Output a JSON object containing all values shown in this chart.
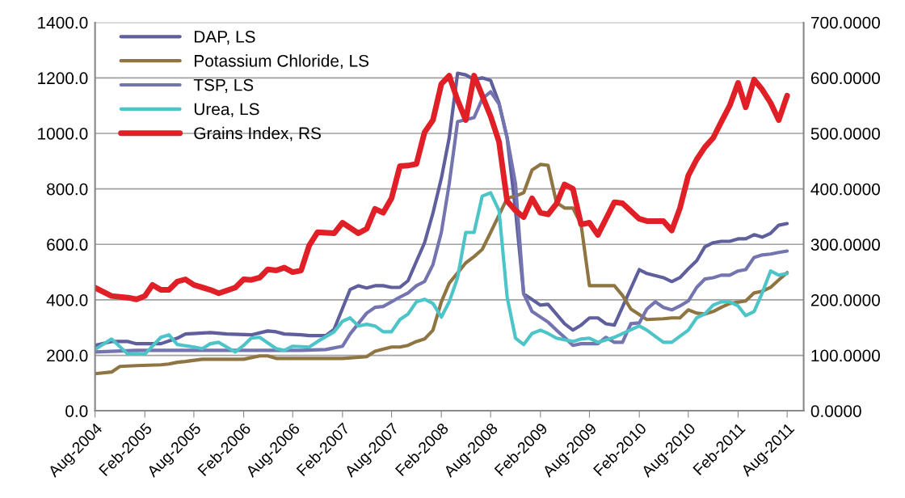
{
  "chart_data": {
    "type": "line",
    "ylim": [
      0,
      1400
    ],
    "yticks": [
      {
        "value": 0,
        "label": "0.0"
      },
      {
        "value": 200,
        "label": "200.0"
      },
      {
        "value": 400,
        "label": "400.0"
      },
      {
        "value": 600,
        "label": "600.0"
      },
      {
        "value": 800,
        "label": "800.0"
      },
      {
        "value": 1000,
        "label": "1000.0"
      },
      {
        "value": 1200,
        "label": "1200.0"
      },
      {
        "value": 1400,
        "label": "1400.0"
      }
    ],
    "y2lim": [
      0,
      700
    ],
    "y2ticks": [
      {
        "value": 0,
        "label": "0.0000"
      },
      {
        "value": 100,
        "label": "100.0000"
      },
      {
        "value": 200,
        "label": "200.0000"
      },
      {
        "value": 300,
        "label": "300.0000"
      },
      {
        "value": 400,
        "label": "400.0000"
      },
      {
        "value": 500,
        "label": "500.0000"
      },
      {
        "value": 600,
        "label": "600.0000"
      },
      {
        "value": 700,
        "label": "700.0000"
      }
    ],
    "xlim": [
      "2004-08",
      "2011-10"
    ],
    "xticks": [
      {
        "value": "2004-08",
        "label": "Aug-2004"
      },
      {
        "value": "2005-02",
        "label": "Feb-2005"
      },
      {
        "value": "2005-08",
        "label": "Aug-2005"
      },
      {
        "value": "2006-02",
        "label": "Feb-2006"
      },
      {
        "value": "2006-08",
        "label": "Aug-2006"
      },
      {
        "value": "2007-02",
        "label": "Feb-2007"
      },
      {
        "value": "2007-08",
        "label": "Aug-2007"
      },
      {
        "value": "2008-02",
        "label": "Feb-2008"
      },
      {
        "value": "2008-08",
        "label": "Aug-2008"
      },
      {
        "value": "2009-02",
        "label": "Feb-2009"
      },
      {
        "value": "2009-08",
        "label": "Aug-2009"
      },
      {
        "value": "2010-02",
        "label": "Feb-2010"
      },
      {
        "value": "2010-08",
        "label": "Aug-2010"
      },
      {
        "value": "2011-02",
        "label": "Feb-2011"
      },
      {
        "value": "2011-08",
        "label": "Aug-2011"
      }
    ],
    "grid": "y",
    "legend": "top left",
    "marker": "none",
    "line_style": "solid",
    "series": [
      {
        "name": "DAP, LS",
        "color": "#5f5f9e",
        "x": [
          "2004-08",
          "2004-10",
          "2004-12",
          "2005-01",
          "2005-03",
          "2005-04",
          "2005-06",
          "2005-07",
          "2005-10",
          "2005-12",
          "2006-03",
          "2006-05",
          "2006-06",
          "2006-07",
          "2006-09",
          "2006-10",
          "2006-12",
          "2007-01",
          "2007-03",
          "2007-04",
          "2007-05",
          "2007-06",
          "2007-07",
          "2007-08",
          "2007-09",
          "2007-10",
          "2007-11",
          "2007-12",
          "2008-01",
          "2008-02",
          "2008-03",
          "2008-04",
          "2008-05",
          "2008-06",
          "2008-07",
          "2008-08",
          "2008-09",
          "2008-10",
          "2008-11",
          "2008-12",
          "2009-02",
          "2009-03",
          "2009-05",
          "2009-06",
          "2009-07",
          "2009-08",
          "2009-09",
          "2009-10",
          "2009-11",
          "2010-02",
          "2010-03",
          "2010-05",
          "2010-06",
          "2010-07",
          "2010-08",
          "2010-09",
          "2010-10",
          "2010-11",
          "2010-12",
          "2011-01",
          "2011-02",
          "2011-03",
          "2011-04",
          "2011-05",
          "2011-06",
          "2011-07",
          "2011-08"
        ],
        "values": [
          236,
          250,
          250,
          242,
          242,
          242,
          262,
          277,
          282,
          277,
          274,
          288,
          285,
          277,
          274,
          271,
          271,
          294,
          437,
          451,
          443,
          451,
          451,
          445,
          445,
          469,
          539,
          606,
          713,
          838,
          984,
          1217,
          1211,
          1194,
          1200,
          1191,
          1109,
          984,
          722,
          422,
          381,
          384,
          314,
          291,
          309,
          335,
          335,
          314,
          309,
          509,
          495,
          480,
          466,
          480,
          512,
          541,
          591,
          606,
          611,
          611,
          620,
          620,
          635,
          626,
          640,
          669,
          675
        ]
      },
      {
        "name": "Potassium Chloride, LS",
        "color": "#8f7542",
        "x": [
          "2004-08",
          "2004-10",
          "2004-11",
          "2005-01",
          "2005-04",
          "2005-05",
          "2005-06",
          "2005-07",
          "2005-09",
          "2005-11",
          "2006-02",
          "2006-04",
          "2006-05",
          "2006-06",
          "2006-09",
          "2007-02",
          "2007-05",
          "2007-06",
          "2007-08",
          "2007-09",
          "2007-10",
          "2007-11",
          "2007-12",
          "2008-01",
          "2008-02",
          "2008-03",
          "2008-05",
          "2008-06",
          "2008-07",
          "2008-08",
          "2008-10",
          "2008-11",
          "2008-12",
          "2009-01",
          "2009-02",
          "2009-03",
          "2009-04",
          "2009-05",
          "2009-06",
          "2009-07",
          "2009-08",
          "2009-11",
          "2009-12",
          "2010-01",
          "2010-03",
          "2010-05",
          "2010-06",
          "2010-07",
          "2010-08",
          "2010-09",
          "2010-10",
          "2010-11",
          "2010-12",
          "2011-01",
          "2011-03",
          "2011-04",
          "2011-05",
          "2011-06",
          "2011-07",
          "2011-08"
        ],
        "values": [
          134,
          140,
          160,
          163,
          166,
          169,
          175,
          178,
          186,
          186,
          186,
          198,
          198,
          189,
          189,
          189,
          195,
          215,
          230,
          230,
          236,
          250,
          259,
          291,
          393,
          460,
          533,
          556,
          582,
          643,
          766,
          774,
          786,
          868,
          888,
          885,
          751,
          731,
          731,
          672,
          451,
          451,
          416,
          367,
          329,
          332,
          335,
          335,
          364,
          352,
          349,
          358,
          373,
          387,
          396,
          425,
          431,
          445,
          472,
          498
        ]
      },
      {
        "name": "TSP, LS",
        "color": "#7474b0",
        "x": [
          "2004-08",
          "2005-01",
          "2005-06",
          "2005-11",
          "2006-04",
          "2006-09",
          "2006-12",
          "2007-02",
          "2007-03",
          "2007-05",
          "2007-06",
          "2007-07",
          "2007-09",
          "2007-10",
          "2007-11",
          "2007-12",
          "2008-01",
          "2008-02",
          "2008-03",
          "2008-04",
          "2008-06",
          "2008-07",
          "2008-08",
          "2008-09",
          "2008-10",
          "2008-11",
          "2008-12",
          "2009-01",
          "2009-03",
          "2009-04",
          "2009-05",
          "2009-06",
          "2009-07",
          "2009-09",
          "2009-10",
          "2009-11",
          "2009-12",
          "2010-01",
          "2010-02",
          "2010-03",
          "2010-04",
          "2010-05",
          "2010-06",
          "2010-07",
          "2010-08",
          "2010-09",
          "2010-10",
          "2010-11",
          "2010-12",
          "2011-01",
          "2011-02",
          "2011-03",
          "2011-04",
          "2011-05",
          "2011-06",
          "2011-07",
          "2011-08"
        ],
        "values": [
          212,
          218,
          218,
          218,
          218,
          218,
          221,
          233,
          277,
          352,
          373,
          376,
          410,
          425,
          451,
          466,
          527,
          643,
          818,
          1042,
          1057,
          1124,
          1150,
          1106,
          984,
          818,
          422,
          358,
          320,
          291,
          265,
          236,
          242,
          242,
          265,
          247,
          247,
          314,
          317,
          367,
          393,
          373,
          364,
          378,
          396,
          445,
          475,
          480,
          489,
          489,
          504,
          509,
          553,
          562,
          565,
          571,
          576
        ]
      },
      {
        "name": "Urea, LS",
        "color": "#4dc4c8",
        "x": [
          "2004-08",
          "2004-10",
          "2004-12",
          "2005-01",
          "2005-02",
          "2005-04",
          "2005-05",
          "2005-06",
          "2005-08",
          "2005-09",
          "2005-10",
          "2005-11",
          "2006-01",
          "2006-02",
          "2006-03",
          "2006-04",
          "2006-06",
          "2006-07",
          "2006-08",
          "2006-10",
          "2006-11",
          "2007-01",
          "2007-02",
          "2007-03",
          "2007-04",
          "2007-05",
          "2007-06",
          "2007-07",
          "2007-08",
          "2007-09",
          "2007-10",
          "2007-11",
          "2007-12",
          "2008-01",
          "2008-02",
          "2008-03",
          "2008-04",
          "2008-05",
          "2008-06",
          "2008-07",
          "2008-08",
          "2008-09",
          "2008-10",
          "2008-11",
          "2008-12",
          "2009-01",
          "2009-02",
          "2009-03",
          "2009-04",
          "2009-06",
          "2009-07",
          "2009-08",
          "2009-09",
          "2009-11",
          "2010-02",
          "2010-03",
          "2010-05",
          "2010-06",
          "2010-08",
          "2010-09",
          "2010-10",
          "2010-11",
          "2010-12",
          "2011-01",
          "2011-02",
          "2011-03",
          "2011-04",
          "2011-05",
          "2011-06",
          "2011-07",
          "2011-08"
        ],
        "values": [
          221,
          259,
          204,
          207,
          204,
          265,
          274,
          239,
          230,
          224,
          242,
          247,
          212,
          236,
          262,
          265,
          224,
          218,
          233,
          230,
          250,
          285,
          323,
          335,
          306,
          312,
          306,
          285,
          285,
          329,
          349,
          393,
          402,
          387,
          338,
          393,
          480,
          643,
          643,
          774,
          786,
          722,
          410,
          262,
          239,
          279,
          291,
          279,
          262,
          250,
          259,
          262,
          247,
          265,
          306,
          291,
          247,
          247,
          291,
          335,
          349,
          381,
          393,
          393,
          378,
          343,
          358,
          425,
          504,
          489,
          495
        ]
      },
      {
        "name": "Grains Index, RS",
        "color": "#e01f26",
        "axis": "y2",
        "x": [
          "2004-08",
          "2004-10",
          "2004-12",
          "2005-01",
          "2005-02",
          "2005-03",
          "2005-04",
          "2005-05",
          "2005-06",
          "2005-07",
          "2005-08",
          "2005-10",
          "2005-11",
          "2006-01",
          "2006-02",
          "2006-03",
          "2006-04",
          "2006-05",
          "2006-06",
          "2006-07",
          "2006-08",
          "2006-09",
          "2006-10",
          "2006-11",
          "2007-01",
          "2007-02",
          "2007-04",
          "2007-05",
          "2007-06",
          "2007-07",
          "2007-08",
          "2007-09",
          "2007-10",
          "2007-11",
          "2007-12",
          "2008-01",
          "2008-02",
          "2008-03",
          "2008-04",
          "2008-05",
          "2008-06",
          "2008-07",
          "2008-08",
          "2008-09",
          "2008-10",
          "2008-11",
          "2008-12",
          "2009-01",
          "2009-02",
          "2009-03",
          "2009-04",
          "2009-05",
          "2009-06",
          "2009-07",
          "2009-08",
          "2009-09",
          "2009-11",
          "2009-12",
          "2010-02",
          "2010-03",
          "2010-05",
          "2010-06",
          "2010-07",
          "2010-08",
          "2010-09",
          "2010-10",
          "2010-11",
          "2010-12",
          "2011-01",
          "2011-02",
          "2011-03",
          "2011-04",
          "2011-05",
          "2011-06",
          "2011-07",
          "2011-08"
        ],
        "values": [
          222,
          207,
          204,
          201,
          207,
          227,
          218,
          218,
          233,
          237,
          227,
          218,
          212,
          222,
          237,
          236,
          240,
          255,
          253,
          258,
          250,
          253,
          298,
          322,
          320,
          339,
          320,
          328,
          364,
          357,
          383,
          441,
          442,
          445,
          502,
          524,
          589,
          604,
          560,
          524,
          604,
          568,
          531,
          485,
          378,
          361,
          349,
          383,
          357,
          354,
          373,
          408,
          400,
          336,
          339,
          317,
          376,
          374,
          346,
          342,
          342,
          325,
          365,
          424,
          453,
          475,
          492,
          521,
          550,
          591,
          547,
          597,
          579,
          555,
          524,
          568
        ]
      }
    ]
  }
}
